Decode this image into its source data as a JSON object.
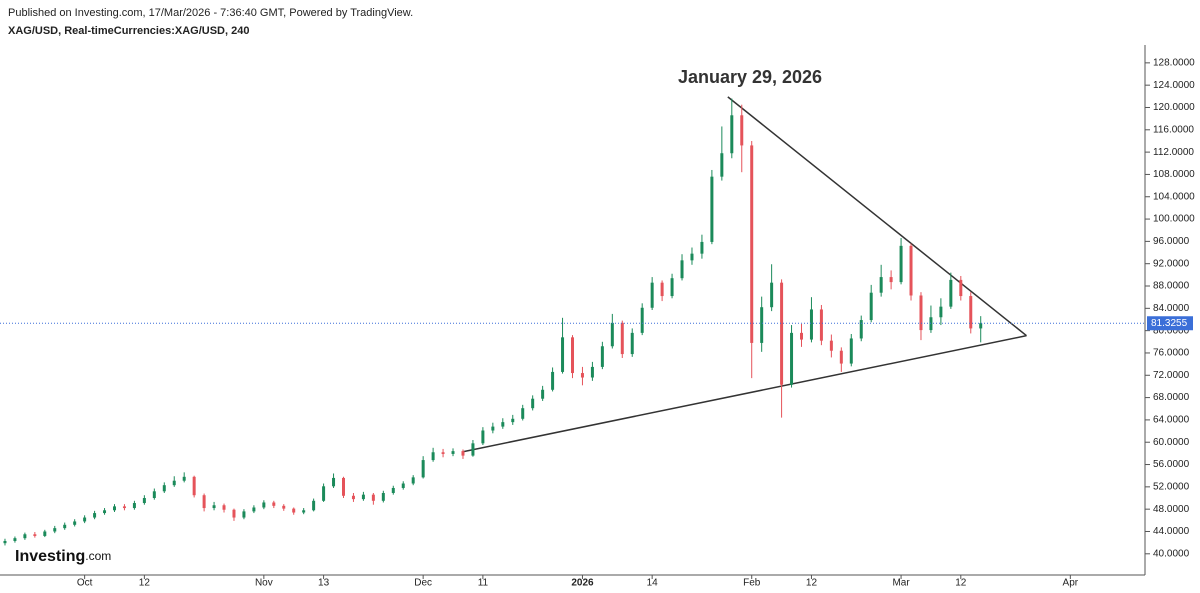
{
  "header": {
    "published": "Published on Investing.com, 17/Mar/2026 - 7:36:40 GMT, Powered by TradingView.",
    "symbol": "XAG/USD, Real-timeCurrencies:XAG/USD, 240"
  },
  "logo": {
    "name": "Investing",
    "suffix": ".com"
  },
  "chart_data": {
    "type": "candlestick",
    "annotation": "January 29, 2026",
    "xlim": [
      -0.5,
      114.5
    ],
    "xticks": [
      {
        "value": 8,
        "label": "Oct"
      },
      {
        "value": 14,
        "label": "12"
      },
      {
        "value": 26,
        "label": "Nov"
      },
      {
        "value": 32,
        "label": "13"
      },
      {
        "value": 42,
        "label": "Dec"
      },
      {
        "value": 48,
        "label": "11"
      },
      {
        "value": 58,
        "label": "2026"
      },
      {
        "value": 65,
        "label": "14"
      },
      {
        "value": 75,
        "label": "Feb"
      },
      {
        "value": 81,
        "label": "12"
      },
      {
        "value": 90,
        "label": "Mar"
      },
      {
        "value": 96,
        "label": "12"
      },
      {
        "value": 107,
        "label": "Apr"
      }
    ],
    "ylim": [
      36.2,
      131.2
    ],
    "yticks": [
      {
        "value": 40,
        "label": "40.0000"
      },
      {
        "value": 44,
        "label": "44.0000"
      },
      {
        "value": 48,
        "label": "48.0000"
      },
      {
        "value": 52,
        "label": "52.0000"
      },
      {
        "value": 56,
        "label": "56.0000"
      },
      {
        "value": 60,
        "label": "60.0000"
      },
      {
        "value": 64,
        "label": "64.0000"
      },
      {
        "value": 68,
        "label": "68.0000"
      },
      {
        "value": 72,
        "label": "72.0000"
      },
      {
        "value": 76,
        "label": "76.0000"
      },
      {
        "value": 80,
        "label": "80.0000"
      },
      {
        "value": 84,
        "label": "84.0000"
      },
      {
        "value": 88,
        "label": "88.0000"
      },
      {
        "value": 92,
        "label": "92.0000"
      },
      {
        "value": 96,
        "label": "96.0000"
      },
      {
        "value": 100,
        "label": "100.0000"
      },
      {
        "value": 104,
        "label": "104.0000"
      },
      {
        "value": 108,
        "label": "108.0000"
      },
      {
        "value": 112,
        "label": "112.0000"
      },
      {
        "value": 116,
        "label": "116.0000"
      },
      {
        "value": 120,
        "label": "120.0000"
      },
      {
        "value": 124,
        "label": "124.0000"
      },
      {
        "value": 128,
        "label": "128.0000"
      }
    ],
    "up_color": "#1b8a5a",
    "down_color": "#e5535a",
    "last_price": 81.3255,
    "last_price_color": "#3b6fd8",
    "trendlines": [
      {
        "x": [
          72.6,
          102.6
        ],
        "y": [
          121.9,
          79.1
        ]
      },
      {
        "x": [
          46,
          102.6
        ],
        "y": [
          58.3,
          79.1
        ]
      }
    ],
    "open": [
      41.9,
      42.3,
      42.8,
      43.5,
      43.2,
      44.0,
      44.6,
      45.2,
      45.8,
      46.5,
      47.3,
      47.8,
      48.5,
      48.2,
      49.1,
      50.0,
      51.2,
      52.3,
      53.1,
      53.8,
      50.5,
      48.2,
      48.7,
      47.9,
      46.5,
      47.6,
      48.3,
      49.2,
      48.6,
      48.1,
      47.4,
      47.8,
      49.5,
      52.1,
      53.6,
      50.4,
      49.8,
      50.6,
      49.5,
      50.9,
      51.8,
      52.6,
      53.7,
      56.8,
      58.2,
      57.9,
      58.4,
      57.6,
      59.8,
      62.1,
      62.8,
      63.6,
      64.2,
      66.1,
      67.8,
      69.4,
      72.6,
      78.8,
      72.4,
      71.6,
      73.5,
      77.2,
      81.4,
      75.8,
      79.6,
      84.1,
      88.6,
      86.2,
      89.4,
      92.6,
      93.8,
      95.9,
      107.6,
      111.8,
      118.6,
      113.2,
      77.8,
      84.2,
      88.6,
      70.3,
      79.6,
      78.4,
      83.8,
      78.2,
      76.4,
      74.1,
      78.6,
      81.9,
      86.8,
      89.6,
      88.7,
      95.2,
      86.3,
      80.1,
      82.4,
      84.3,
      89.1,
      86.2,
      80.4
    ],
    "high": [
      42.7,
      43.1,
      43.8,
      43.9,
      44.3,
      45.0,
      45.6,
      46.2,
      46.9,
      47.7,
      48.2,
      48.9,
      48.9,
      49.5,
      50.5,
      51.7,
      52.8,
      53.9,
      54.6,
      54.0,
      50.8,
      49.3,
      49.0,
      48.1,
      48.0,
      48.7,
      49.6,
      49.5,
      48.9,
      48.3,
      48.2,
      49.9,
      52.6,
      54.4,
      53.8,
      50.9,
      51.1,
      50.9,
      51.3,
      52.2,
      53.0,
      54.1,
      57.5,
      59.0,
      58.8,
      58.9,
      58.7,
      60.4,
      62.7,
      63.5,
      64.3,
      64.9,
      66.7,
      68.4,
      70.1,
      73.4,
      82.3,
      79.2,
      73.5,
      74.4,
      78.0,
      83.0,
      81.8,
      80.4,
      84.9,
      89.6,
      89.0,
      90.2,
      93.7,
      94.9,
      97.2,
      108.8,
      116.6,
      121.6,
      120.5,
      114.0,
      86.1,
      91.9,
      89.2,
      81.0,
      81.2,
      86.0,
      84.6,
      79.3,
      77.0,
      79.4,
      82.7,
      88.2,
      91.8,
      90.8,
      96.6,
      95.6,
      86.9,
      84.5,
      85.8,
      90.4,
      89.8,
      86.9,
      82.6
    ],
    "low": [
      41.5,
      42.0,
      42.5,
      42.9,
      43.0,
      43.7,
      44.3,
      44.9,
      45.5,
      46.2,
      47.0,
      47.5,
      47.8,
      47.9,
      48.8,
      49.7,
      50.9,
      52.0,
      52.8,
      50.1,
      47.6,
      47.8,
      47.4,
      45.9,
      46.2,
      47.3,
      48.0,
      48.2,
      47.7,
      47.0,
      47.1,
      47.6,
      49.3,
      51.8,
      50.0,
      49.3,
      49.5,
      48.8,
      49.2,
      50.6,
      51.5,
      52.3,
      53.5,
      56.5,
      57.3,
      57.5,
      57.0,
      57.4,
      59.5,
      61.6,
      62.4,
      63.1,
      63.9,
      65.7,
      67.4,
      69.1,
      72.3,
      71.5,
      70.2,
      71.0,
      73.1,
      76.8,
      75.1,
      75.3,
      79.2,
      83.7,
      85.3,
      85.8,
      89.0,
      91.8,
      92.9,
      95.5,
      106.9,
      110.9,
      108.4,
      71.5,
      76.2,
      83.5,
      64.4,
      69.8,
      77.1,
      77.9,
      77.4,
      75.2,
      72.6,
      73.6,
      78.1,
      81.5,
      86.1,
      87.4,
      88.3,
      85.4,
      78.3,
      79.6,
      81.0,
      83.9,
      85.4,
      79.5,
      77.9
    ],
    "close": [
      42.3,
      42.8,
      43.5,
      43.2,
      44.0,
      44.6,
      45.2,
      45.8,
      46.5,
      47.3,
      47.8,
      48.5,
      48.2,
      49.1,
      50.0,
      51.2,
      52.3,
      53.1,
      53.8,
      50.5,
      48.2,
      48.7,
      47.9,
      46.5,
      47.6,
      48.3,
      49.2,
      48.6,
      48.1,
      47.4,
      47.8,
      49.5,
      52.1,
      53.6,
      50.4,
      49.8,
      50.6,
      49.5,
      50.9,
      51.8,
      52.6,
      53.7,
      56.8,
      58.2,
      57.9,
      58.4,
      57.6,
      59.8,
      62.1,
      62.8,
      63.6,
      64.2,
      66.1,
      67.8,
      69.4,
      72.6,
      78.8,
      72.4,
      71.6,
      73.5,
      77.2,
      81.4,
      75.8,
      79.6,
      84.1,
      88.6,
      86.2,
      89.4,
      92.6,
      93.8,
      95.9,
      107.6,
      111.8,
      118.6,
      113.2,
      77.8,
      84.2,
      88.6,
      70.3,
      79.6,
      78.4,
      83.8,
      78.2,
      76.4,
      74.1,
      78.6,
      81.9,
      86.8,
      89.6,
      88.7,
      95.2,
      86.3,
      80.1,
      82.4,
      84.3,
      89.1,
      86.2,
      80.4,
      81.33
    ]
  }
}
